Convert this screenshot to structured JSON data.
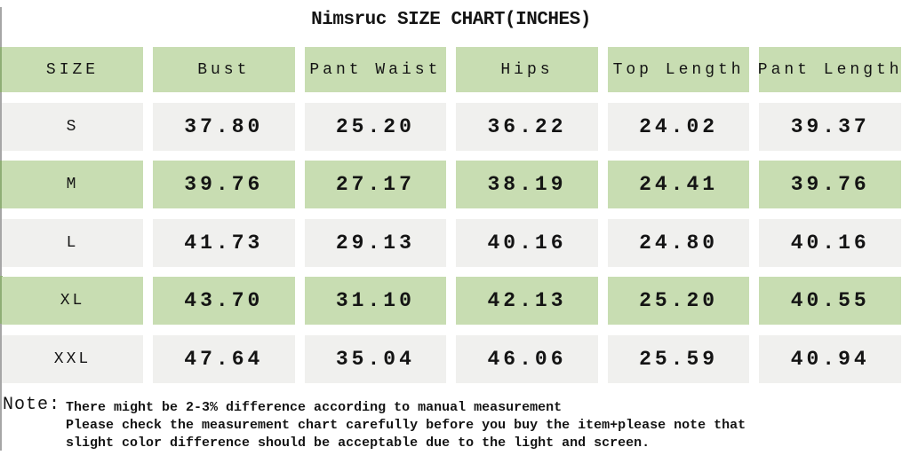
{
  "title": "Nimsruc SIZE CHART(INCHES)",
  "table": {
    "columns": [
      "SIZE",
      "Bust",
      "Pant Waist",
      "Hips",
      "Top Length",
      "Pant Length"
    ],
    "rows": [
      {
        "size": "S",
        "values": [
          "37.80",
          "25.20",
          "36.22",
          "24.02",
          "39.37"
        ]
      },
      {
        "size": "M",
        "values": [
          "39.76",
          "27.17",
          "38.19",
          "24.41",
          "39.76"
        ]
      },
      {
        "size": "L",
        "values": [
          "41.73",
          "29.13",
          "40.16",
          "24.80",
          "40.16"
        ]
      },
      {
        "size": "XL",
        "values": [
          "43.70",
          "31.10",
          "42.13",
          "25.20",
          "40.55"
        ]
      },
      {
        "size": "XXL",
        "values": [
          "47.64",
          "35.04",
          "46.06",
          "25.59",
          "40.94"
        ]
      }
    ]
  },
  "note": {
    "label": "Note:",
    "lines": [
      "There might be 2-3% difference according to manual measurement",
      "Please check the measurement chart carefully before you buy the item+please note that",
      "slight color difference should be acceptable due to the light and screen."
    ]
  },
  "colors": {
    "header_green": "#c8ddb2",
    "row_green": "#c8ddb2",
    "row_gray": "#f0f0ee",
    "text": "#141414",
    "left_line": "#a6a6a6"
  }
}
